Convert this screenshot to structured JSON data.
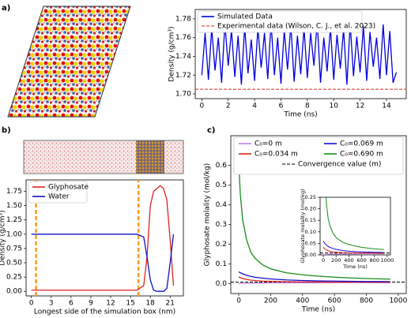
{
  "panel_labels": [
    "a)",
    "b)",
    "c)"
  ],
  "chart_data": [
    {
      "type": "line",
      "xlabel": "Time (ns)",
      "ylabel": "Density (g/cm³)",
      "xlim": [
        -0.5,
        15.5
      ],
      "ylim": [
        1.695,
        1.79
      ],
      "xticks": [
        0,
        2,
        4,
        6,
        8,
        10,
        12,
        14
      ],
      "yticks": [
        {
          "value": 1.7,
          "label": "1.70"
        },
        1.72,
        1.74,
        1.76,
        1.78
      ],
      "legend": "upper left",
      "x": [
        0,
        0.25,
        0.5,
        0.75,
        1,
        1.25,
        1.5,
        1.75,
        2,
        2.25,
        2.5,
        2.75,
        3,
        3.25,
        3.5,
        3.75,
        4,
        4.25,
        4.5,
        4.75,
        5,
        5.25,
        5.5,
        5.75,
        6,
        6.25,
        6.5,
        6.75,
        7,
        7.25,
        7.5,
        7.75,
        8,
        8.25,
        8.5,
        8.75,
        9,
        9.25,
        9.5,
        9.75,
        10,
        10.25,
        10.5,
        10.75,
        11,
        11.25,
        11.5,
        11.75,
        12,
        12.25,
        12.5,
        12.75,
        13,
        13.25,
        13.5,
        13.75,
        14,
        14.25,
        14.5,
        14.75
      ],
      "series": [
        {
          "name": "Simulated Data",
          "color": "#0000dd",
          "values": [
            1.72,
            1.765,
            1.715,
            1.77,
            1.725,
            1.76,
            1.712,
            1.775,
            1.73,
            1.768,
            1.718,
            1.762,
            1.71,
            1.772,
            1.722,
            1.758,
            1.714,
            1.77,
            1.728,
            1.765,
            1.716,
            1.776,
            1.72,
            1.76,
            1.711,
            1.768,
            1.726,
            1.774,
            1.713,
            1.762,
            1.721,
            1.77,
            1.717,
            1.765,
            1.73,
            1.777,
            1.712,
            1.76,
            1.724,
            1.771,
            1.715,
            1.763,
            1.727,
            1.769,
            1.71,
            1.775,
            1.719,
            1.761,
            1.723,
            1.772,
            1.714,
            1.766,
            1.729,
            1.76,
            1.716,
            1.774,
            1.72,
            1.767,
            1.712,
            1.723
          ]
        }
      ],
      "reference_lines": [
        {
          "name": "Experimental data (Wilson, C. J., et al. 2023)",
          "color": "#e02020",
          "value": 1.705
        }
      ]
    },
    {
      "type": "line",
      "xlabel": "Longest side of the simulation box (nm)",
      "ylabel": "Density (g/cm³)",
      "xlim": [
        -0.8,
        23
      ],
      "ylim": [
        -0.08,
        1.95
      ],
      "xticks": [
        0,
        3,
        6,
        9,
        12,
        15,
        18,
        21
      ],
      "yticks": [
        {
          "value": 0,
          "label": "0.00"
        },
        0.25,
        {
          "value": 0.5,
          "label": "0.50"
        },
        0.75,
        {
          "value": 1,
          "label": "1.00"
        },
        1.25,
        {
          "value": 1.5,
          "label": "1.50"
        },
        1.75
      ],
      "legend": "upper left",
      "x": [
        0,
        2,
        4,
        6,
        8,
        10,
        12,
        14,
        16,
        17,
        17.5,
        18,
        18.5,
        19,
        19.5,
        20,
        20.5,
        21,
        21.5
      ],
      "series": [
        {
          "name": "Glyphosate",
          "color": "#e02020",
          "values": [
            0.02,
            0.02,
            0.02,
            0.02,
            0.02,
            0.02,
            0.02,
            0.02,
            0.02,
            0.1,
            0.6,
            1.5,
            1.75,
            1.8,
            1.85,
            1.8,
            1.6,
            0.9,
            0.1
          ]
        },
        {
          "name": "Water",
          "color": "#1010c0",
          "values": [
            1,
            1,
            1,
            1,
            1,
            1,
            1,
            1,
            1,
            0.95,
            0.6,
            0.2,
            0.02,
            0,
            0,
            0,
            0.05,
            0.5,
            1
          ]
        }
      ],
      "vlines": [
        {
          "value": 0.7,
          "color": "#ff9a1a"
        },
        {
          "value": 16.2,
          "color": "#ff9a1a"
        }
      ]
    },
    {
      "type": "line",
      "xlabel": "Time (ns)",
      "ylabel": "Glyphosate molality (mol/kg)",
      "xlim": [
        -50,
        1050
      ],
      "ylim": [
        -0.05,
        0.75
      ],
      "xticks": [
        0,
        200,
        400,
        600,
        800,
        1000
      ],
      "yticks": [
        {
          "value": 0,
          "label": "0.0"
        },
        0.1,
        0.2,
        0.3,
        0.4,
        0.5,
        0.6
      ],
      "legend": "upper center",
      "x": [
        0,
        10,
        25,
        50,
        75,
        100,
        150,
        200,
        300,
        400,
        500,
        600,
        700,
        800,
        900,
        950
      ],
      "series": [
        {
          "name": "C₀=0 m",
          "color": "#c080e0",
          "values": [
            0,
            0.001,
            0.002,
            0.002,
            0.003,
            0.003,
            0.003,
            0.004,
            0.004,
            0.004,
            0.004,
            0.005,
            0.005,
            0.005,
            0.005,
            0.005
          ]
        },
        {
          "name": "C₀=0.034 m",
          "color": "#e02020",
          "values": [
            0.034,
            0.03,
            0.026,
            0.021,
            0.018,
            0.016,
            0.013,
            0.012,
            0.01,
            0.009,
            0.009,
            0.008,
            0.008,
            0.008,
            0.007,
            0.007
          ]
        },
        {
          "name": "C₀=0.069 m",
          "color": "#1010d0",
          "values": [
            0.06,
            0.055,
            0.05,
            0.042,
            0.037,
            0.033,
            0.028,
            0.024,
            0.019,
            0.016,
            0.014,
            0.013,
            0.012,
            0.011,
            0.011,
            0.01
          ]
        },
        {
          "name": "C₀=0.690 m",
          "color": "#1a8a1a",
          "values": [
            0.61,
            0.45,
            0.32,
            0.22,
            0.16,
            0.13,
            0.095,
            0.075,
            0.055,
            0.045,
            0.038,
            0.033,
            0.029,
            0.026,
            0.024,
            0.023
          ]
        }
      ],
      "reference_lines": [
        {
          "name": "Convergence value (m)",
          "color": "#000000",
          "value": 0.008
        }
      ],
      "inset": {
        "xlabel": "Time (ns)",
        "ylabel": "Glyphosate molality (mol/kg)",
        "xlim": [
          -50,
          1050
        ],
        "ylim": [
          0,
          0.25
        ],
        "xticks": [
          0,
          200,
          400,
          600,
          800,
          1000
        ],
        "yticks": [
          {
            "value": 0,
            "label": "0.00"
          },
          0.05,
          {
            "value": 0.1,
            "label": "0.10"
          },
          0.15,
          {
            "value": 0.2,
            "label": "0.20"
          },
          0.25
        ]
      }
    }
  ]
}
